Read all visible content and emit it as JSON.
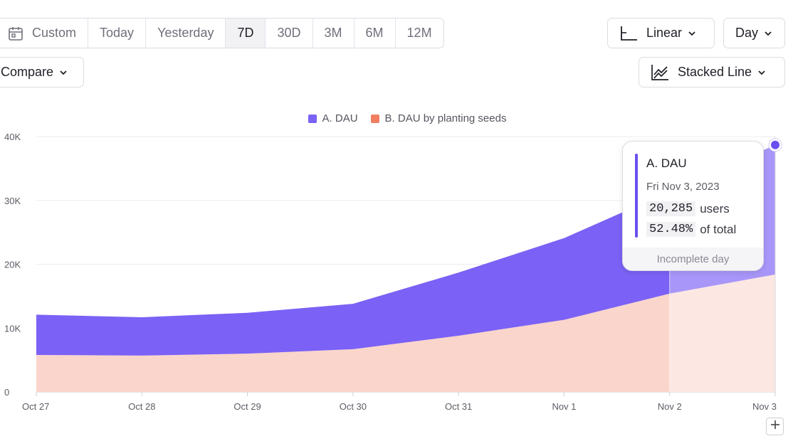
{
  "date_range": {
    "custom_label": "Custom",
    "options": [
      "Today",
      "Yesterday",
      "7D",
      "30D",
      "3M",
      "6M",
      "12M"
    ],
    "selected": "7D"
  },
  "scale_label": "Linear",
  "interval_label": "Day",
  "compare_label": "Compare",
  "chart_type_label": "Stacked Line",
  "colors": {
    "series_a": "#7b61f5",
    "series_b": "#f9d5cb",
    "series_a_incomplete": "#a896f8",
    "series_b_incomplete": "#fce7e2",
    "legend_b": "#f07f62",
    "accent": "#6a4ff0"
  },
  "legend": {
    "a": "A. DAU",
    "b": "B. DAU by planting seeds"
  },
  "tooltip": {
    "title": "A. DAU",
    "date": "Fri Nov 3, 2023",
    "value": "20,285",
    "value_unit": "users",
    "pct": "52.48%",
    "pct_unit": "of total",
    "footer": "Incomplete day"
  },
  "chart_data": {
    "type": "area",
    "stacked": true,
    "x": [
      "Oct 27",
      "Oct 28",
      "Oct 29",
      "Oct 30",
      "Oct 31",
      "Nov 1",
      "Nov 2",
      "Nov 3"
    ],
    "y_ticks": [
      "0",
      "10K",
      "20K",
      "30K",
      "40K"
    ],
    "ylim": [
      0,
      40000
    ],
    "legend_position": "top",
    "incomplete_from": "Nov 2",
    "series": [
      {
        "name": "B. DAU by planting seeds",
        "values": [
          5800,
          5700,
          6000,
          6700,
          8800,
          11300,
          15400,
          18400
        ]
      },
      {
        "name": "A. DAU",
        "values": [
          6300,
          6000,
          6400,
          7100,
          9900,
          12800,
          16000,
          20285
        ]
      }
    ]
  }
}
